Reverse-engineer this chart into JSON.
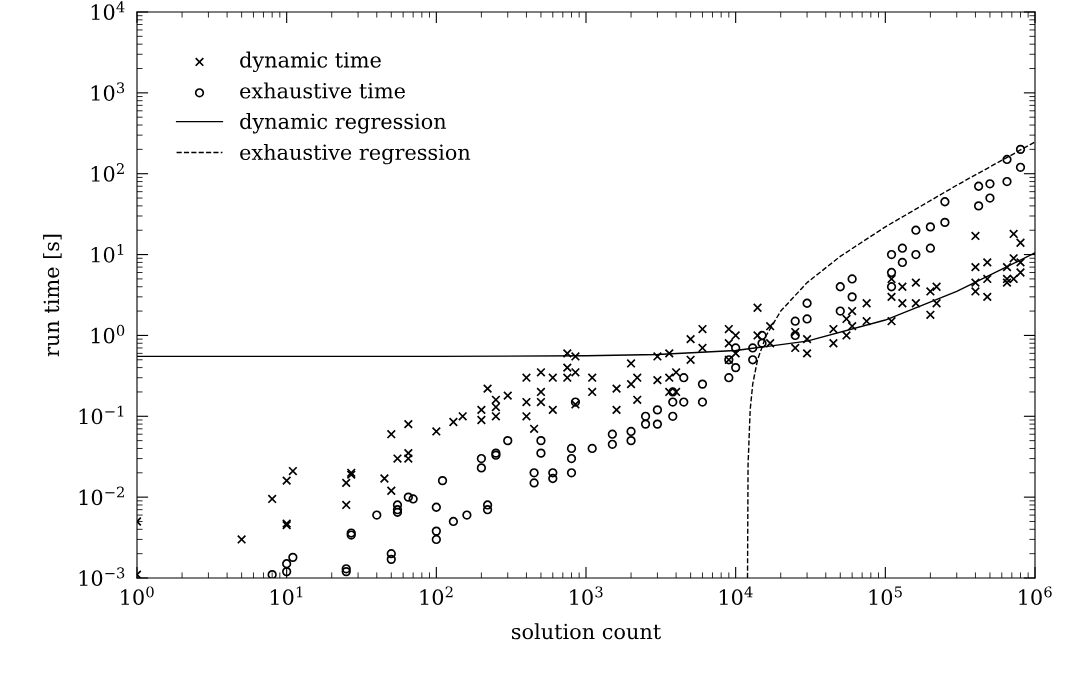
{
  "chart_data": {
    "type": "scatter",
    "xlabel": "solution count",
    "ylabel": "run time [s]",
    "log": "xy",
    "legend": "top left",
    "grid": false,
    "xlim": [
      1,
      1000000
    ],
    "ylim": [
      0.001,
      10000
    ],
    "xticks": [
      {
        "value": 1,
        "label": "10$^{0}$"
      },
      {
        "value": 10,
        "label": "10$^{1}$"
      },
      {
        "value": 100,
        "label": "10$^{2}$"
      },
      {
        "value": 1000,
        "label": "10$^{3}$"
      },
      {
        "value": 10000,
        "label": "10$^{4}$"
      },
      {
        "value": 100000,
        "label": "10$^{5}$"
      },
      {
        "value": 1000000,
        "label": "10$^{6}$"
      }
    ],
    "yticks": [
      {
        "value": 0.001,
        "label": "10$^{−3}$"
      },
      {
        "value": 0.01,
        "label": "10$^{−2}$"
      },
      {
        "value": 0.1,
        "label": "10$^{−1}$"
      },
      {
        "value": 1,
        "label": "10$^{0}$"
      },
      {
        "value": 10,
        "label": "10$^{1}$"
      },
      {
        "value": 100,
        "label": "10$^{2}$"
      },
      {
        "value": 1000,
        "label": "10$^{3}$"
      },
      {
        "value": 10000,
        "label": "10$^{4}$"
      }
    ],
    "series": [
      {
        "name": "dynamic time",
        "marker": "cross",
        "color": "#000000",
        "x": [
          1,
          1,
          5,
          8,
          10,
          10,
          10,
          11,
          25,
          25,
          27,
          27,
          45,
          50,
          50,
          55,
          65,
          65,
          65,
          100,
          130,
          150,
          200,
          200,
          220,
          250,
          250,
          250,
          300,
          400,
          400,
          400,
          450,
          500,
          500,
          500,
          600,
          600,
          750,
          750,
          750,
          850,
          850,
          850,
          1100,
          1100,
          1600,
          1600,
          2000,
          2000,
          2200,
          2200,
          3000,
          3000,
          3600,
          3600,
          3600,
          4000,
          4000,
          5000,
          5000,
          6000,
          6000,
          9000,
          9000,
          9000,
          10000,
          10000,
          14000,
          14000,
          17000,
          17000,
          25000,
          25000,
          30000,
          30000,
          45000,
          45000,
          55000,
          55000,
          60000,
          60000,
          75000,
          75000,
          110000,
          110000,
          110000,
          130000,
          130000,
          160000,
          160000,
          200000,
          200000,
          220000,
          220000,
          400000,
          400000,
          400000,
          400000,
          480000,
          480000,
          480000,
          650000,
          650000,
          650000,
          720000,
          720000,
          720000,
          800000,
          800000,
          800000
        ],
        "values": [
          0.005,
          0.0011,
          0.003,
          0.0095,
          0.016,
          0.0047,
          0.0045,
          0.021,
          0.015,
          0.008,
          0.02,
          0.019,
          0.017,
          0.06,
          0.012,
          0.03,
          0.08,
          0.035,
          0.03,
          0.065,
          0.085,
          0.1,
          0.12,
          0.09,
          0.22,
          0.13,
          0.16,
          0.1,
          0.18,
          0.3,
          0.15,
          0.1,
          0.07,
          0.35,
          0.2,
          0.15,
          0.3,
          0.12,
          0.6,
          0.4,
          0.3,
          0.55,
          0.35,
          0.14,
          0.3,
          0.2,
          0.22,
          0.12,
          0.45,
          0.25,
          0.3,
          0.16,
          0.55,
          0.28,
          0.6,
          0.3,
          0.2,
          0.35,
          0.2,
          0.9,
          0.5,
          1.2,
          0.7,
          1.2,
          0.8,
          0.5,
          1.0,
          0.6,
          2.2,
          1.0,
          1.3,
          0.8,
          1.1,
          0.7,
          0.9,
          0.6,
          1.2,
          0.8,
          1.6,
          1.0,
          2.0,
          1.3,
          2.5,
          1.5,
          5,
          3,
          1.5,
          4,
          2.5,
          4.5,
          2.5,
          3.5,
          1.8,
          4,
          2.5,
          17,
          7,
          4.5,
          3.5,
          8,
          5,
          3,
          7,
          5,
          4.5,
          18,
          9,
          5,
          14,
          8,
          6
        ]
      },
      {
        "name": "exhaustive time",
        "marker": "circle",
        "color": "#000000",
        "x": [
          8,
          10,
          10,
          11,
          25,
          25,
          27,
          27,
          40,
          50,
          50,
          55,
          55,
          55,
          65,
          70,
          100,
          100,
          100,
          110,
          130,
          160,
          200,
          200,
          220,
          220,
          250,
          250,
          300,
          450,
          450,
          500,
          500,
          600,
          600,
          800,
          800,
          800,
          850,
          1100,
          1500,
          1500,
          2000,
          2000,
          2500,
          2500,
          3000,
          3000,
          3800,
          3800,
          3800,
          4500,
          4500,
          6000,
          6000,
          9000,
          9000,
          10000,
          10000,
          13000,
          13000,
          15000,
          15000,
          25000,
          25000,
          30000,
          30000,
          50000,
          50000,
          60000,
          60000,
          110000,
          110000,
          110000,
          130000,
          130000,
          160000,
          160000,
          200000,
          200000,
          250000,
          250000,
          420000,
          420000,
          500000,
          500000,
          650000,
          650000,
          800000,
          800000
        ],
        "values": [
          0.0011,
          0.0012,
          0.0015,
          0.0018,
          0.0013,
          0.0012,
          0.0036,
          0.0034,
          0.006,
          0.002,
          0.0017,
          0.008,
          0.0065,
          0.007,
          0.01,
          0.0095,
          0.0075,
          0.0038,
          0.003,
          0.016,
          0.005,
          0.006,
          0.03,
          0.023,
          0.008,
          0.007,
          0.035,
          0.033,
          0.05,
          0.02,
          0.015,
          0.05,
          0.035,
          0.02,
          0.017,
          0.04,
          0.03,
          0.02,
          0.15,
          0.04,
          0.06,
          0.045,
          0.065,
          0.05,
          0.1,
          0.08,
          0.12,
          0.08,
          0.2,
          0.15,
          0.1,
          0.3,
          0.15,
          0.25,
          0.15,
          0.5,
          0.3,
          0.7,
          0.4,
          0.7,
          0.5,
          1.0,
          0.8,
          1.5,
          1.0,
          2.5,
          1.6,
          4,
          2,
          5,
          3,
          10,
          6,
          4,
          12,
          8,
          20,
          10,
          22,
          12,
          45,
          25,
          70,
          40,
          75,
          50,
          150,
          80,
          200,
          120
        ]
      },
      {
        "name": "dynamic regression",
        "type": "line",
        "line_style": "solid",
        "color": "#000000",
        "x": [
          1,
          10,
          100,
          1000,
          3000,
          10000,
          30000,
          100000,
          300000,
          1000000
        ],
        "values": [
          0.55,
          0.55,
          0.55,
          0.56,
          0.58,
          0.65,
          0.85,
          1.55,
          3.5,
          10.5
        ]
      },
      {
        "name": "exhaustive regression",
        "type": "line",
        "line_style": "dashed",
        "color": "#000000",
        "x": [
          12000,
          12100,
          12500,
          13000,
          14000,
          16000,
          20000,
          30000,
          50000,
          100000,
          300000,
          1000000
        ],
        "values": [
          0.001,
          0.025,
          0.12,
          0.25,
          0.5,
          1.0,
          2.0,
          4.5,
          9.5,
          22,
          72,
          247
        ]
      }
    ]
  }
}
